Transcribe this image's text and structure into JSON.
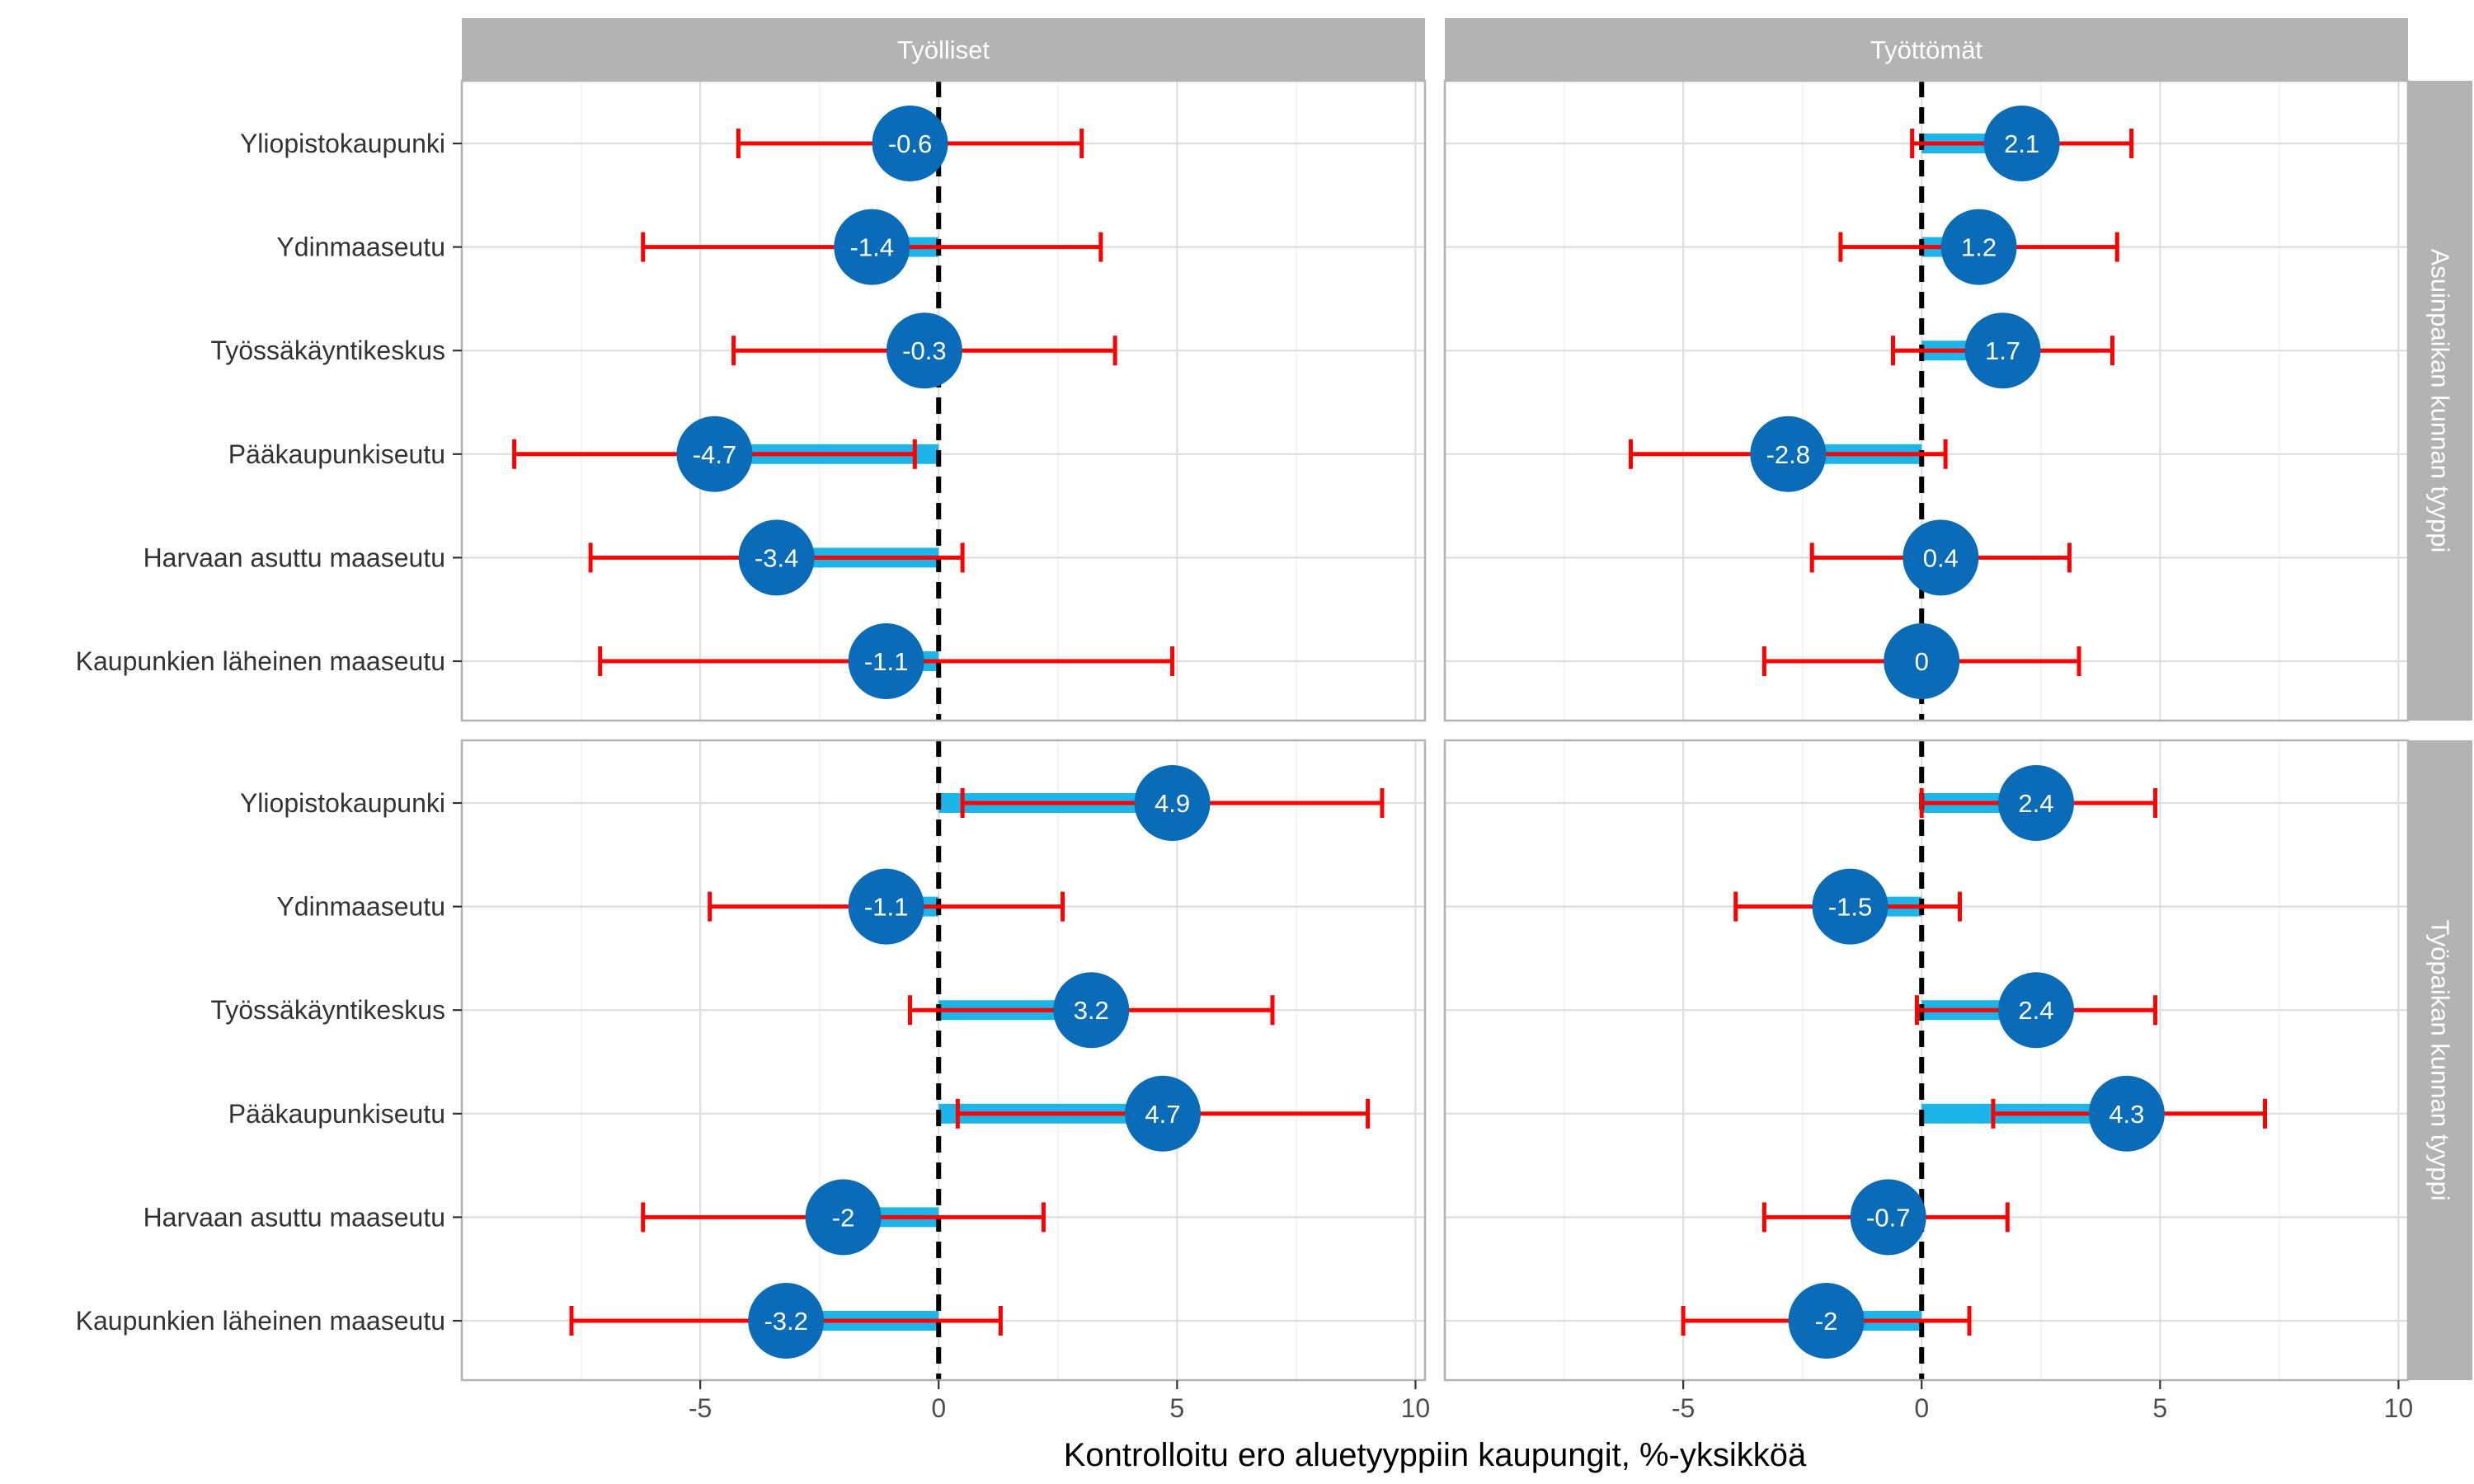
{
  "chart_data": {
    "type": "dot-errorbar",
    "xlabel": "Kontrolloitu ero aluetyyppiin kaupungit, %-yksikköä",
    "ylabel": "",
    "xlim": [
      -10,
      10.2
    ],
    "x_ticks": [
      -5,
      0,
      5,
      10
    ],
    "x_tick_labels": [
      "-5",
      "0",
      "5",
      "10"
    ],
    "reference_line": 0,
    "grid": true,
    "colors": {
      "bar": "#1cb5ea",
      "point": "#0a6cb8",
      "errorbar": "#ff0000",
      "reference_line": "#000000",
      "strip": "#b3b3b3"
    },
    "columns": [
      "Työlliset",
      "Työttömät"
    ],
    "rows": [
      "Asuinpaikan kunnan tyyppi",
      "Työpaikan kunnan tyyppi"
    ],
    "categories": [
      "Yliopistokaupunki",
      "Ydinmaaseutu",
      "Työssäkäyntikeskus",
      "Pääkaupunkiseutu",
      "Harvaan asuttu maaseutu",
      "Kaupunkien läheinen maaseutu"
    ],
    "panels": [
      {
        "column": "Työlliset",
        "row": "Asuinpaikan kunnan tyyppi",
        "points": [
          {
            "category": "Yliopistokaupunki",
            "value": -0.6,
            "label": "-0.6",
            "lo": -4.2,
            "hi": 3.0
          },
          {
            "category": "Ydinmaaseutu",
            "value": -1.4,
            "label": "-1.4",
            "lo": -6.2,
            "hi": 3.4
          },
          {
            "category": "Työssäkäyntikeskus",
            "value": -0.3,
            "label": "-0.3",
            "lo": -4.3,
            "hi": 3.7
          },
          {
            "category": "Pääkaupunkiseutu",
            "value": -4.7,
            "label": "-4.7",
            "lo": -8.9,
            "hi": -0.5
          },
          {
            "category": "Harvaan asuttu maaseutu",
            "value": -3.4,
            "label": "-3.4",
            "lo": -7.3,
            "hi": 0.5
          },
          {
            "category": "Kaupunkien läheinen maaseutu",
            "value": -1.1,
            "label": "-1.1",
            "lo": -7.1,
            "hi": 4.9
          }
        ]
      },
      {
        "column": "Työttömät",
        "row": "Asuinpaikan kunnan tyyppi",
        "points": [
          {
            "category": "Yliopistokaupunki",
            "value": 2.1,
            "label": "2.1",
            "lo": -0.2,
            "hi": 4.4
          },
          {
            "category": "Ydinmaaseutu",
            "value": 1.2,
            "label": "1.2",
            "lo": -1.7,
            "hi": 4.1
          },
          {
            "category": "Työssäkäyntikeskus",
            "value": 1.7,
            "label": "1.7",
            "lo": -0.6,
            "hi": 4.0
          },
          {
            "category": "Pääkaupunkiseutu",
            "value": -2.8,
            "label": "-2.8",
            "lo": -6.1,
            "hi": 0.5
          },
          {
            "category": "Harvaan asuttu maaseutu",
            "value": 0.4,
            "label": "0.4",
            "lo": -2.3,
            "hi": 3.1
          },
          {
            "category": "Kaupunkien läheinen maaseutu",
            "value": 0,
            "label": "0",
            "lo": -3.3,
            "hi": 3.3
          }
        ]
      },
      {
        "column": "Työlliset",
        "row": "Työpaikan kunnan tyyppi",
        "points": [
          {
            "category": "Yliopistokaupunki",
            "value": 4.9,
            "label": "4.9",
            "lo": 0.5,
            "hi": 9.3
          },
          {
            "category": "Ydinmaaseutu",
            "value": -1.1,
            "label": "-1.1",
            "lo": -4.8,
            "hi": 2.6
          },
          {
            "category": "Työssäkäyntikeskus",
            "value": 3.2,
            "label": "3.2",
            "lo": -0.6,
            "hi": 7.0
          },
          {
            "category": "Pääkaupunkiseutu",
            "value": 4.7,
            "label": "4.7",
            "lo": 0.4,
            "hi": 9.0
          },
          {
            "category": "Harvaan asuttu maaseutu",
            "value": -2.0,
            "label": "-2",
            "lo": -6.2,
            "hi": 2.2
          },
          {
            "category": "Kaupunkien läheinen maaseutu",
            "value": -3.2,
            "label": "-3.2",
            "lo": -7.7,
            "hi": 1.3
          }
        ]
      },
      {
        "column": "Työttömät",
        "row": "Työpaikan kunnan tyyppi",
        "points": [
          {
            "category": "Yliopistokaupunki",
            "value": 2.4,
            "label": "2.4",
            "lo": 0.0,
            "hi": 4.9
          },
          {
            "category": "Ydinmaaseutu",
            "value": -1.5,
            "label": "-1.5",
            "lo": -3.9,
            "hi": 0.8
          },
          {
            "category": "Työssäkäyntikeskus",
            "value": 2.4,
            "label": "2.4",
            "lo": -0.1,
            "hi": 4.9
          },
          {
            "category": "Pääkaupunkiseutu",
            "value": 4.3,
            "label": "4.3",
            "lo": 1.5,
            "hi": 7.2
          },
          {
            "category": "Harvaan asuttu maaseutu",
            "value": -0.7,
            "label": "-0.7",
            "lo": -3.3,
            "hi": 1.8
          },
          {
            "category": "Kaupunkien läheinen maaseutu",
            "value": -2.0,
            "label": "-2",
            "lo": -5.0,
            "hi": 1.0
          }
        ]
      }
    ]
  }
}
